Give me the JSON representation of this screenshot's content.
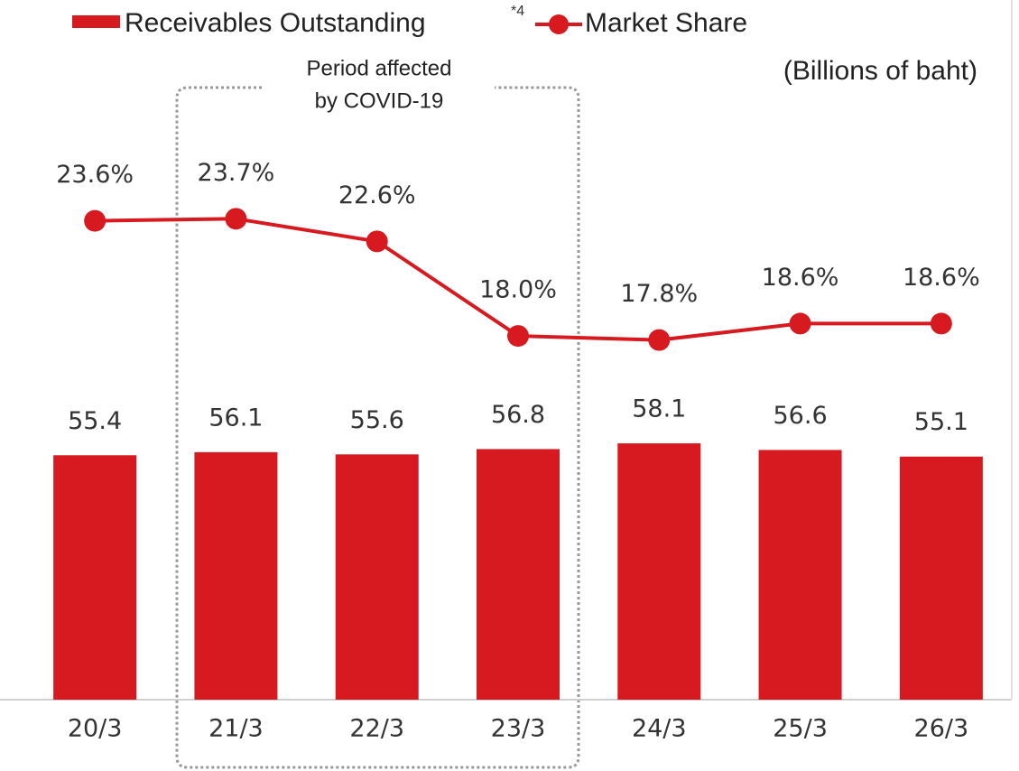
{
  "chart_data": {
    "type": "bar_line",
    "categories": [
      "20/3",
      "21/3",
      "22/3",
      "23/3",
      "24/3",
      "25/3",
      "26/3"
    ],
    "series": [
      {
        "name": "Receivables Outstanding",
        "name_note": "*4",
        "type": "bar",
        "color": "#d71920",
        "values": [
          55.4,
          56.1,
          55.6,
          56.8,
          58.1,
          56.6,
          55.1
        ]
      },
      {
        "name": "Market Share",
        "type": "line",
        "axis": "y2",
        "color": "#d71920",
        "values": [
          23.6,
          23.7,
          22.6,
          18.0,
          17.8,
          18.6,
          18.6
        ],
        "value_labels": [
          "23.6%",
          "23.7%",
          "22.6%",
          "18.0%",
          "17.8%",
          "18.6%",
          "18.6%"
        ]
      }
    ],
    "unit_label": "(Billions of baht)",
    "annotation": [
      "Period affected",
      "by COVID-19"
    ],
    "ylim": [
      0,
      150
    ],
    "y2lim": [
      0.3,
      32.5
    ]
  }
}
